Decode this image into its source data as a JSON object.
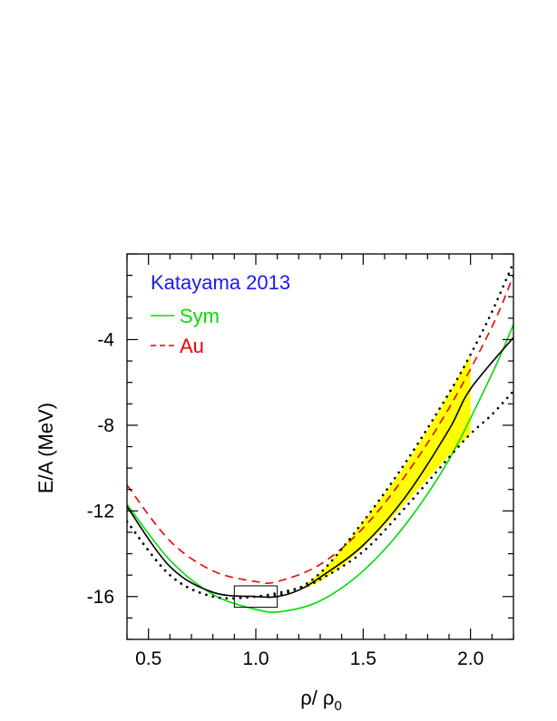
{
  "chart_data": {
    "type": "line",
    "title": "",
    "xlabel": "ρ/ ρ",
    "xlabel_subscript": "0",
    "ylabel": "E/A (MeV)",
    "xlim": [
      0.4,
      2.2
    ],
    "ylim": [
      -18.0,
      0.0
    ],
    "xticks": [
      0.5,
      1.0,
      1.5,
      2.0
    ],
    "xtick_labels": [
      "0.5",
      "1.0",
      "1.5",
      "2.0"
    ],
    "yticks": [
      -16,
      -12,
      -8,
      -4
    ],
    "ytick_labels": [
      "-16",
      "-12",
      "-8",
      "-4"
    ],
    "grid": false,
    "legend": {
      "placement": "top-left",
      "title": "Katayama 2013",
      "title_color": "#1a1aee",
      "entries": [
        {
          "label": "Sym",
          "color": "#00dd00",
          "style": "solid"
        },
        {
          "label": "Au",
          "color": "#ee0000",
          "style": "dashed"
        }
      ]
    },
    "series": [
      {
        "name": "Sym",
        "color": "#00dd00",
        "style": "solid",
        "x": [
          0.4,
          0.6,
          0.8,
          1.0,
          1.12,
          1.3,
          1.5,
          1.7,
          1.9,
          2.1,
          2.2
        ],
        "y": [
          -11.7,
          -14.3,
          -15.9,
          -16.6,
          -16.7,
          -16.2,
          -14.8,
          -12.6,
          -9.6,
          -5.6,
          -3.3
        ]
      },
      {
        "name": "Au",
        "color": "#ee0000",
        "style": "dashed",
        "x": [
          0.4,
          0.6,
          0.8,
          1.0,
          1.1,
          1.3,
          1.5,
          1.7,
          1.9,
          2.1,
          2.2
        ],
        "y": [
          -10.8,
          -13.4,
          -14.8,
          -15.3,
          -15.3,
          -14.5,
          -12.8,
          -10.3,
          -7.2,
          -3.4,
          -1.0
        ]
      },
      {
        "color": "#000000",
        "style": "solid",
        "x": [
          0.4,
          0.6,
          0.8,
          1.0,
          1.1,
          1.2,
          1.3,
          1.5,
          1.7,
          1.9,
          2.0,
          2.2
        ],
        "y": [
          -11.8,
          -14.6,
          -15.8,
          -16.0,
          -16.0,
          -15.7,
          -15.1,
          -13.6,
          -11.3,
          -8.2,
          -6.3,
          -3.9
        ]
      },
      {
        "color": "#000000",
        "style": "dotted",
        "x": [
          0.4,
          0.6,
          0.8,
          1.0,
          1.15,
          1.3,
          1.5,
          1.7,
          1.9,
          2.0,
          2.1,
          2.2
        ],
        "y": [
          -12.5,
          -15.0,
          -16.0,
          -16.0,
          -15.8,
          -14.9,
          -12.5,
          -9.7,
          -6.5,
          -4.7,
          -2.7,
          -0.4
        ]
      },
      {
        "color": "#000000",
        "style": "dotted",
        "x": [
          0.4,
          0.6,
          0.8,
          1.0,
          1.2,
          1.3,
          1.5,
          1.7,
          1.9,
          2.0,
          2.1,
          2.2
        ],
        "y": [
          -12.5,
          -15.0,
          -16.0,
          -16.0,
          -15.6,
          -15.2,
          -13.9,
          -11.8,
          -9.5,
          -8.4,
          -7.5,
          -6.4
        ]
      }
    ],
    "band": {
      "color": "#ffff00",
      "x": [
        1.2,
        1.3,
        1.4,
        1.5,
        1.6,
        1.7,
        1.8,
        1.9,
        2.0
      ],
      "y_upper": [
        -15.7,
        -14.9,
        -13.8,
        -12.5,
        -11.2,
        -9.8,
        -8.2,
        -6.5,
        -4.7
      ],
      "y_lower": [
        -15.7,
        -15.3,
        -14.6,
        -13.7,
        -12.7,
        -11.6,
        -10.5,
        -9.4,
        -8.4
      ]
    },
    "box": {
      "x_range": [
        0.9,
        1.1
      ],
      "y_range": [
        -16.5,
        -15.5
      ]
    }
  }
}
